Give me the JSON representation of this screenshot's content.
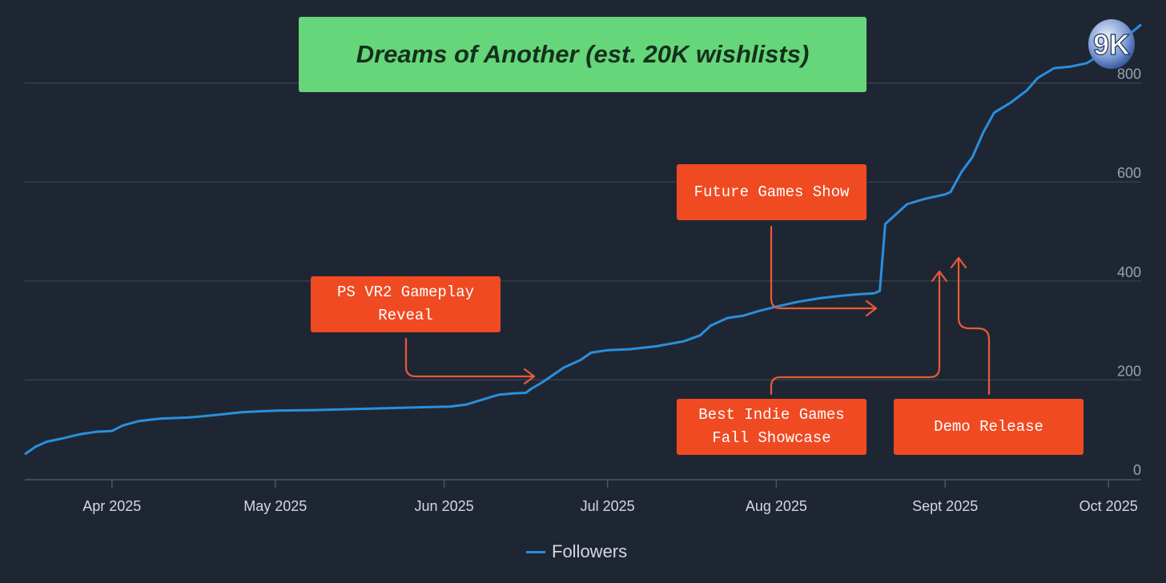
{
  "chart_data": {
    "type": "line",
    "title": "Dreams of Another (est. 20K wishlists)",
    "y_axis": {
      "ticks": [
        0,
        200,
        400,
        600,
        800
      ],
      "ylim": [
        0,
        1000
      ],
      "position": "right",
      "grid": true
    },
    "x_axis": {
      "range": [
        "2025-03-16",
        "2025-10-07"
      ],
      "ticks": [
        {
          "date": "2025-04-01",
          "label": "Apr 2025"
        },
        {
          "date": "2025-05-01",
          "label": "May 2025"
        },
        {
          "date": "2025-06-01",
          "label": "Jun 2025"
        },
        {
          "date": "2025-07-01",
          "label": "Jul 2025"
        },
        {
          "date": "2025-08-01",
          "label": "Aug 2025"
        },
        {
          "date": "2025-09-01",
          "label": "Sept 2025"
        },
        {
          "date": "2025-10-01",
          "label": "Oct 2025"
        }
      ]
    },
    "series": [
      {
        "name": "Followers",
        "color": "#2a8fdc",
        "points": [
          [
            "2025-03-16",
            50
          ],
          [
            "2025-03-18",
            65
          ],
          [
            "2025-03-20",
            75
          ],
          [
            "2025-03-23",
            82
          ],
          [
            "2025-03-26",
            90
          ],
          [
            "2025-03-29",
            95
          ],
          [
            "2025-04-01",
            97
          ],
          [
            "2025-04-03",
            108
          ],
          [
            "2025-04-06",
            117
          ],
          [
            "2025-04-10",
            122
          ],
          [
            "2025-04-15",
            124
          ],
          [
            "2025-04-20",
            129
          ],
          [
            "2025-04-25",
            135
          ],
          [
            "2025-05-01",
            138
          ],
          [
            "2025-05-08",
            139
          ],
          [
            "2025-05-15",
            141
          ],
          [
            "2025-05-22",
            143
          ],
          [
            "2025-05-29",
            145
          ],
          [
            "2025-06-02",
            146
          ],
          [
            "2025-06-05",
            150
          ],
          [
            "2025-06-08",
            160
          ],
          [
            "2025-06-11",
            170
          ],
          [
            "2025-06-14",
            173
          ],
          [
            "2025-06-16",
            174
          ],
          [
            "2025-06-17",
            182
          ],
          [
            "2025-06-19",
            195
          ],
          [
            "2025-06-21",
            210
          ],
          [
            "2025-06-23",
            225
          ],
          [
            "2025-06-26",
            240
          ],
          [
            "2025-06-28",
            255
          ],
          [
            "2025-07-01",
            260
          ],
          [
            "2025-07-05",
            262
          ],
          [
            "2025-07-10",
            268
          ],
          [
            "2025-07-15",
            278
          ],
          [
            "2025-07-18",
            290
          ],
          [
            "2025-07-20",
            310
          ],
          [
            "2025-07-23",
            325
          ],
          [
            "2025-07-26",
            330
          ],
          [
            "2025-07-29",
            340
          ],
          [
            "2025-08-01",
            348
          ],
          [
            "2025-08-05",
            358
          ],
          [
            "2025-08-09",
            365
          ],
          [
            "2025-08-13",
            370
          ],
          [
            "2025-08-16",
            373
          ],
          [
            "2025-08-19",
            375
          ],
          [
            "2025-08-20",
            380
          ],
          [
            "2025-08-21",
            515
          ],
          [
            "2025-08-23",
            535
          ],
          [
            "2025-08-25",
            555
          ],
          [
            "2025-08-28",
            565
          ],
          [
            "2025-09-01",
            575
          ],
          [
            "2025-09-02",
            580
          ],
          [
            "2025-09-04",
            620
          ],
          [
            "2025-09-06",
            650
          ],
          [
            "2025-09-08",
            700
          ],
          [
            "2025-09-10",
            740
          ],
          [
            "2025-09-13",
            760
          ],
          [
            "2025-09-16",
            785
          ],
          [
            "2025-09-18",
            810
          ],
          [
            "2025-09-21",
            830
          ],
          [
            "2025-09-24",
            833
          ],
          [
            "2025-09-27",
            840
          ],
          [
            "2025-09-30",
            860
          ],
          [
            "2025-10-02",
            875
          ],
          [
            "2025-10-05",
            900
          ],
          [
            "2025-10-07",
            918
          ]
        ]
      }
    ],
    "annotations": [
      {
        "label": "PS VR2 Gameplay\nReveal",
        "date": "2025-06-16"
      },
      {
        "label": "Future Games Show",
        "date": "2025-08-21"
      },
      {
        "label": "Best Indie Games\nFall Showcase",
        "date": "2025-08-28"
      },
      {
        "label": "Demo Release",
        "date": "2025-09-02"
      }
    ],
    "legend": {
      "position": "bottom-center"
    }
  },
  "logo": {
    "text": "9K"
  }
}
